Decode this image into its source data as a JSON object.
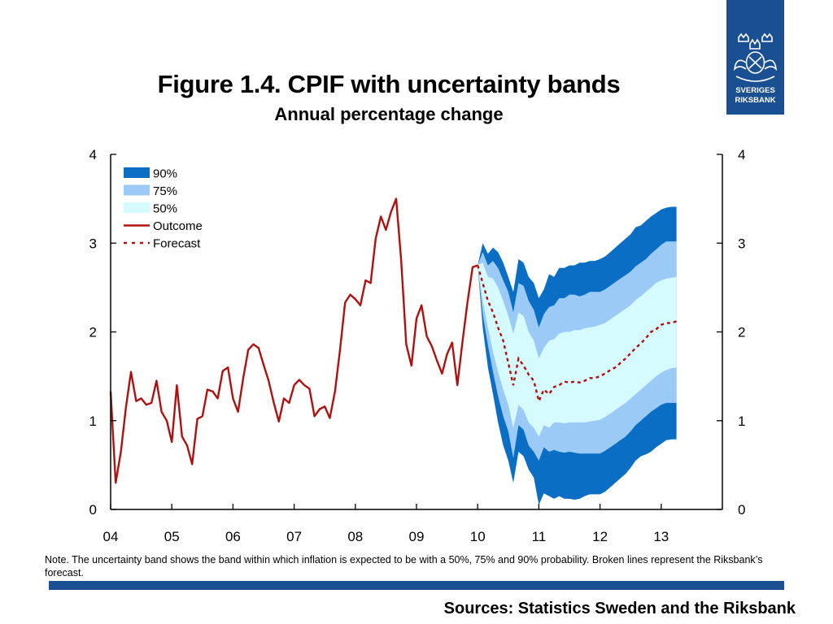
{
  "header": {
    "title": "Figure 1.4. CPIF with uncertainty bands",
    "subtitle": "Annual percentage change"
  },
  "logo": {
    "line1": "SVERIGES",
    "line2": "RIKSBANK"
  },
  "note": "Note. The uncertainty band shows the band within which inflation is expected to be with a 50%, 75% and 90% probability. Broken lines represent the Riksbank’s forecast.",
  "sources": "Sources: Statistics Sweden and the Riksbank",
  "colors": {
    "outcome": "#b01010",
    "forecast": "#b01010",
    "band90": "#0a6fc4",
    "band75": "#9ccaf7",
    "band50": "#d6fbff",
    "logo_bg": "#1a4f91"
  },
  "chart_data": {
    "type": "line",
    "xlim": [
      2004.0,
      2014.0
    ],
    "ylim": [
      0,
      4
    ],
    "x_ticks": [
      "04",
      "05",
      "06",
      "07",
      "08",
      "09",
      "10",
      "11",
      "12",
      "13"
    ],
    "y_ticks_left": [
      "0",
      "1",
      "2",
      "3",
      "4"
    ],
    "y_ticks_right": [
      "0",
      "1",
      "2",
      "3",
      "4"
    ],
    "grid": false,
    "legend_position": "top-left",
    "legend": [
      {
        "label": "90%",
        "kind": "band90"
      },
      {
        "label": "75%",
        "kind": "band75"
      },
      {
        "label": "50%",
        "kind": "band50"
      },
      {
        "label": "Outcome",
        "kind": "solid"
      },
      {
        "label": "Forecast",
        "kind": "dashed"
      }
    ],
    "outcome": {
      "x": [
        2004.0,
        2004.083,
        2004.167,
        2004.25,
        2004.333,
        2004.417,
        2004.5,
        2004.583,
        2004.667,
        2004.75,
        2004.833,
        2004.917,
        2005.0,
        2005.083,
        2005.167,
        2005.25,
        2005.333,
        2005.417,
        2005.5,
        2005.583,
        2005.667,
        2005.75,
        2005.833,
        2005.917,
        2006.0,
        2006.083,
        2006.167,
        2006.25,
        2006.333,
        2006.417,
        2006.5,
        2006.583,
        2006.667,
        2006.75,
        2006.833,
        2006.917,
        2007.0,
        2007.083,
        2007.167,
        2007.25,
        2007.333,
        2007.417,
        2007.5,
        2007.583,
        2007.667,
        2007.75,
        2007.833,
        2007.917,
        2008.0,
        2008.083,
        2008.167,
        2008.25,
        2008.333,
        2008.417,
        2008.5,
        2008.583,
        2008.667,
        2008.75,
        2008.833,
        2008.917,
        2009.0,
        2009.083,
        2009.167,
        2009.25,
        2009.333,
        2009.417,
        2009.5,
        2009.583,
        2009.667,
        2009.75,
        2009.833,
        2009.917,
        2010.0
      ],
      "y": [
        1.33,
        0.3,
        0.65,
        1.15,
        1.55,
        1.22,
        1.25,
        1.18,
        1.2,
        1.45,
        1.1,
        1.0,
        0.76,
        1.4,
        0.82,
        0.72,
        0.51,
        1.02,
        1.05,
        1.35,
        1.33,
        1.25,
        1.56,
        1.6,
        1.25,
        1.1,
        1.48,
        1.8,
        1.86,
        1.82,
        1.63,
        1.45,
        1.2,
        0.99,
        1.25,
        1.2,
        1.4,
        1.46,
        1.4,
        1.36,
        1.05,
        1.13,
        1.16,
        1.03,
        1.33,
        1.8,
        2.33,
        2.42,
        2.37,
        2.3,
        2.58,
        2.55,
        3.05,
        3.3,
        3.15,
        3.35,
        3.5,
        2.8,
        1.86,
        1.62,
        2.15,
        2.3,
        1.95,
        1.84,
        1.68,
        1.53,
        1.75,
        1.88,
        1.4,
        1.88,
        2.33,
        2.73,
        2.75
      ]
    },
    "forecast": {
      "x": [
        2010.0,
        2010.083,
        2010.167,
        2010.25,
        2010.333,
        2010.417,
        2010.5,
        2010.583,
        2010.667,
        2010.75,
        2010.833,
        2010.917,
        2011.0,
        2011.083,
        2011.167,
        2011.25,
        2011.333,
        2011.417,
        2011.5,
        2011.583,
        2011.667,
        2011.75,
        2011.833,
        2011.917,
        2012.0,
        2012.083,
        2012.167,
        2012.25,
        2012.333,
        2012.417,
        2012.5,
        2012.583,
        2012.667,
        2012.75,
        2012.833,
        2012.917,
        2013.0,
        2013.083,
        2013.167,
        2013.25
      ],
      "y": [
        2.75,
        2.55,
        2.35,
        2.22,
        2.05,
        1.9,
        1.65,
        1.4,
        1.7,
        1.62,
        1.52,
        1.45,
        1.22,
        1.35,
        1.3,
        1.38,
        1.4,
        1.44,
        1.43,
        1.44,
        1.43,
        1.45,
        1.48,
        1.48,
        1.5,
        1.53,
        1.57,
        1.6,
        1.65,
        1.7,
        1.76,
        1.82,
        1.87,
        1.93,
        2.0,
        2.03,
        2.08,
        2.1,
        2.1,
        2.12
      ]
    },
    "bands": {
      "x": [
        2010.0,
        2010.083,
        2010.167,
        2010.25,
        2010.333,
        2010.417,
        2010.5,
        2010.583,
        2010.667,
        2010.75,
        2010.833,
        2010.917,
        2011.0,
        2011.083,
        2011.167,
        2011.25,
        2011.333,
        2011.417,
        2011.5,
        2011.583,
        2011.667,
        2011.75,
        2011.833,
        2011.917,
        2012.0,
        2012.083,
        2012.167,
        2012.25,
        2012.333,
        2012.417,
        2012.5,
        2012.583,
        2012.667,
        2012.75,
        2012.833,
        2012.917,
        2013.0,
        2013.083,
        2013.167,
        2013.25
      ],
      "p90_upper": [
        2.75,
        3.0,
        2.88,
        2.95,
        2.9,
        2.78,
        2.62,
        2.45,
        2.82,
        2.78,
        2.62,
        2.55,
        2.38,
        2.48,
        2.65,
        2.62,
        2.72,
        2.72,
        2.75,
        2.75,
        2.78,
        2.78,
        2.8,
        2.8,
        2.82,
        2.85,
        2.9,
        2.95,
        3.0,
        3.05,
        3.1,
        3.18,
        3.2,
        3.25,
        3.3,
        3.34,
        3.38,
        3.4,
        3.41,
        3.41
      ],
      "p75_upper": [
        2.75,
        2.9,
        2.75,
        2.8,
        2.72,
        2.58,
        2.45,
        2.22,
        2.55,
        2.52,
        2.35,
        2.25,
        2.05,
        2.2,
        2.28,
        2.3,
        2.38,
        2.38,
        2.42,
        2.42,
        2.4,
        2.42,
        2.45,
        2.45,
        2.45,
        2.48,
        2.52,
        2.56,
        2.6,
        2.64,
        2.68,
        2.74,
        2.78,
        2.82,
        2.88,
        2.93,
        2.98,
        3.02,
        3.02,
        3.02
      ],
      "p50_upper": [
        2.75,
        2.78,
        2.62,
        2.6,
        2.5,
        2.35,
        2.18,
        1.98,
        2.22,
        2.18,
        2.0,
        1.9,
        1.7,
        1.82,
        1.9,
        1.92,
        1.98,
        2.0,
        2.0,
        2.02,
        2.02,
        2.04,
        2.05,
        2.06,
        2.08,
        2.1,
        2.14,
        2.18,
        2.22,
        2.26,
        2.3,
        2.36,
        2.4,
        2.45,
        2.5,
        2.55,
        2.58,
        2.6,
        2.61,
        2.62
      ],
      "p50_lower": [
        2.75,
        2.35,
        2.05,
        1.78,
        1.55,
        1.35,
        1.18,
        0.92,
        1.18,
        1.12,
        0.98,
        0.92,
        0.82,
        0.95,
        0.92,
        0.98,
        0.98,
        0.97,
        0.98,
        0.98,
        0.98,
        0.98,
        0.99,
        1.0,
        1.01,
        1.04,
        1.08,
        1.12,
        1.16,
        1.2,
        1.25,
        1.3,
        1.35,
        1.4,
        1.45,
        1.5,
        1.54,
        1.57,
        1.59,
        1.6
      ],
      "p75_lower": [
        2.75,
        2.2,
        1.85,
        1.55,
        1.28,
        1.05,
        0.88,
        0.58,
        0.95,
        0.9,
        0.72,
        0.65,
        0.55,
        0.7,
        0.65,
        0.67,
        0.65,
        0.64,
        0.65,
        0.64,
        0.63,
        0.63,
        0.63,
        0.63,
        0.63,
        0.66,
        0.7,
        0.74,
        0.78,
        0.82,
        0.88,
        0.95,
        1.0,
        1.05,
        1.1,
        1.14,
        1.18,
        1.2,
        1.2,
        1.2
      ],
      "p90_lower": [
        2.75,
        2.05,
        1.6,
        1.3,
        0.98,
        0.72,
        0.55,
        0.3,
        0.65,
        0.6,
        0.45,
        0.36,
        0.05,
        0.18,
        0.15,
        0.12,
        0.15,
        0.12,
        0.12,
        0.11,
        0.12,
        0.15,
        0.17,
        0.17,
        0.17,
        0.2,
        0.25,
        0.3,
        0.35,
        0.4,
        0.47,
        0.55,
        0.6,
        0.62,
        0.65,
        0.7,
        0.74,
        0.78,
        0.79,
        0.79
      ]
    }
  }
}
